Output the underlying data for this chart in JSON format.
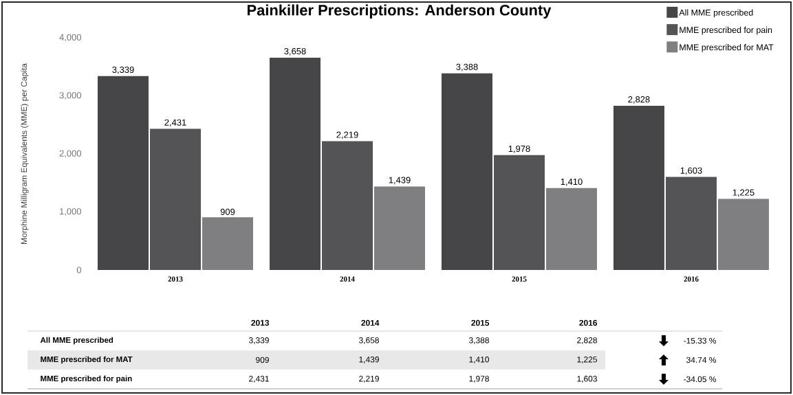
{
  "chart_data": {
    "type": "bar",
    "title": "Painkiller Prescriptions: Anderson County",
    "ylabel": "Morphine Milligram Equivalents (MME) per Capita",
    "categories": [
      "2013",
      "2014",
      "2015",
      "2016"
    ],
    "series": [
      {
        "name": "All MME prescribed",
        "color": "#464648",
        "values": [
          3339,
          3658,
          3388,
          2828
        ],
        "value_labels": [
          "3,339",
          "3,658",
          "3,388",
          "2,828"
        ]
      },
      {
        "name": "MME prescribed  for pain",
        "color": "#545456",
        "values": [
          2431,
          2219,
          1978,
          1603
        ],
        "value_labels": [
          "2,431",
          "2,219",
          "1,978",
          "1,603"
        ]
      },
      {
        "name": "MME prescribed  for MAT",
        "color": "#7f7f82",
        "values": [
          909,
          1439,
          1410,
          1225
        ],
        "value_labels": [
          "909",
          "1,439",
          "1,410",
          "1,225"
        ]
      }
    ],
    "ylim": [
      0,
      4000
    ],
    "yticks": [
      0,
      {
        "value": 1000,
        "label": "1,000"
      },
      {
        "value": 2000,
        "label": "2,000"
      },
      {
        "value": 3000,
        "label": "3,000"
      },
      {
        "value": 4000,
        "label": "4,000"
      }
    ],
    "legend": "top right",
    "annotations": [
      "-15.33 %",
      "34.74 %",
      "-34.05 %"
    ]
  }
}
